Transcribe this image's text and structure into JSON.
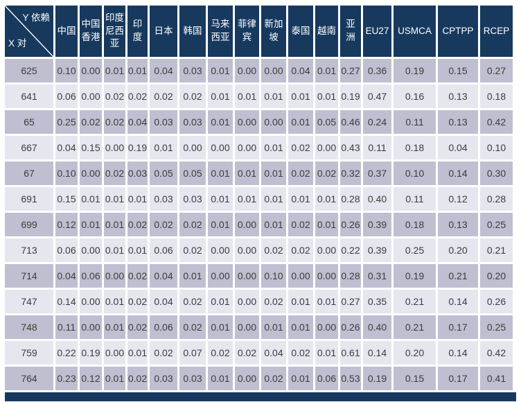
{
  "colors": {
    "header_bg": "#17395e",
    "row_dark": "#bfbfd1",
    "row_light": "#e6e6ef",
    "text": "#3b3b3b",
    "header_text": "#ffffff"
  },
  "chart_data": {
    "type": "table",
    "corner": {
      "top_right": "Y 依赖",
      "bottom_left": "X 对"
    },
    "columns": [
      "中国",
      "中国香港",
      "印度尼西亚",
      "印度",
      "日本",
      "韩国",
      "马来西亚",
      "菲律宾",
      "新加坡",
      "泰国",
      "越南",
      "亚洲",
      "EU27",
      "USMCA",
      "CPTPP",
      "RCEP"
    ],
    "rows": [
      {
        "label": "625",
        "values": [
          "0.10",
          "0.00",
          "0.01",
          "0.01",
          "0.04",
          "0.03",
          "0.01",
          "0.00",
          "0.00",
          "0.04",
          "0.01",
          "0.27",
          "0.36",
          "0.19",
          "0.15",
          "0.27"
        ]
      },
      {
        "label": "641",
        "values": [
          "0.06",
          "0.00",
          "0.02",
          "0.02",
          "0.02",
          "0.02",
          "0.01",
          "0.01",
          "0.01",
          "0.01",
          "0.01",
          "0.19",
          "0.47",
          "0.16",
          "0.13",
          "0.18"
        ]
      },
      {
        "label": "65",
        "values": [
          "0.25",
          "0.02",
          "0.02",
          "0.04",
          "0.03",
          "0.03",
          "0.01",
          "0.00",
          "0.00",
          "0.01",
          "0.05",
          "0.46",
          "0.24",
          "0.11",
          "0.13",
          "0.42"
        ]
      },
      {
        "label": "667",
        "values": [
          "0.04",
          "0.15",
          "0.00",
          "0.19",
          "0.01",
          "0.00",
          "0.00",
          "0.00",
          "0.01",
          "0.02",
          "0.00",
          "0.43",
          "0.11",
          "0.18",
          "0.04",
          "0.10"
        ]
      },
      {
        "label": "67",
        "values": [
          "0.10",
          "0.00",
          "0.02",
          "0.03",
          "0.05",
          "0.05",
          "0.01",
          "0.01",
          "0.01",
          "0.02",
          "0.02",
          "0.32",
          "0.37",
          "0.10",
          "0.14",
          "0.30"
        ]
      },
      {
        "label": "691",
        "values": [
          "0.15",
          "0.01",
          "0.01",
          "0.01",
          "0.03",
          "0.03",
          "0.01",
          "0.01",
          "0.01",
          "0.01",
          "0.01",
          "0.28",
          "0.40",
          "0.11",
          "0.12",
          "0.28"
        ]
      },
      {
        "label": "699",
        "values": [
          "0.12",
          "0.01",
          "0.01",
          "0.02",
          "0.02",
          "0.02",
          "0.01",
          "0.00",
          "0.01",
          "0.02",
          "0.01",
          "0.26",
          "0.39",
          "0.18",
          "0.13",
          "0.25"
        ]
      },
      {
        "label": "713",
        "values": [
          "0.06",
          "0.00",
          "0.01",
          "0.01",
          "0.06",
          "0.02",
          "0.00",
          "0.00",
          "0.02",
          "0.02",
          "0.00",
          "0.22",
          "0.39",
          "0.25",
          "0.20",
          "0.21"
        ]
      },
      {
        "label": "714",
        "values": [
          "0.04",
          "0.06",
          "0.00",
          "0.02",
          "0.04",
          "0.01",
          "0.00",
          "0.00",
          "0.10",
          "0.00",
          "0.00",
          "0.28",
          "0.31",
          "0.19",
          "0.21",
          "0.20"
        ]
      },
      {
        "label": "747",
        "values": [
          "0.14",
          "0.00",
          "0.01",
          "0.02",
          "0.04",
          "0.02",
          "0.01",
          "0.00",
          "0.02",
          "0.01",
          "0.01",
          "0.27",
          "0.35",
          "0.21",
          "0.14",
          "0.26"
        ]
      },
      {
        "label": "748",
        "values": [
          "0.11",
          "0.00",
          "0.01",
          "0.02",
          "0.06",
          "0.02",
          "0.01",
          "0.00",
          "0.01",
          "0.01",
          "0.00",
          "0.26",
          "0.40",
          "0.21",
          "0.17",
          "0.25"
        ]
      },
      {
        "label": "759",
        "values": [
          "0.22",
          "0.19",
          "0.00",
          "0.01",
          "0.02",
          "0.07",
          "0.02",
          "0.02",
          "0.04",
          "0.02",
          "0.01",
          "0.61",
          "0.14",
          "0.20",
          "0.14",
          "0.42"
        ]
      },
      {
        "label": "764",
        "values": [
          "0.23",
          "0.12",
          "0.01",
          "0.02",
          "0.03",
          "0.03",
          "0.01",
          "0.00",
          "0.02",
          "0.01",
          "0.06",
          "0.53",
          "0.19",
          "0.15",
          "0.17",
          "0.41"
        ]
      }
    ]
  }
}
